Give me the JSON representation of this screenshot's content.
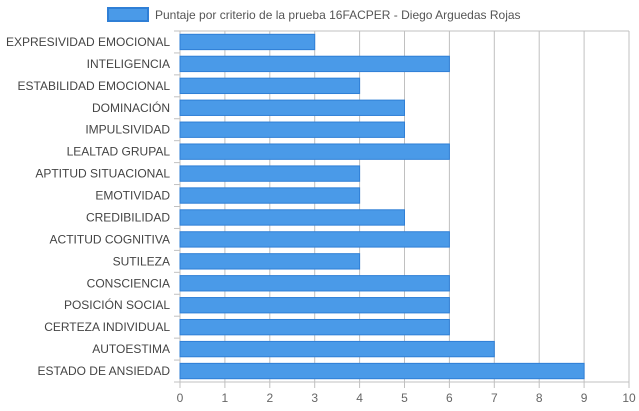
{
  "chart_data": {
    "type": "bar",
    "orientation": "horizontal",
    "title": "",
    "legend": {
      "label": "Puntaje por criterio de la prueba 16FACPER - Diego Arguedas Rojas",
      "placement": "top-center"
    },
    "categories": [
      "EXPRESIVIDAD EMOCIONAL",
      "INTELIGENCIA",
      "ESTABILIDAD EMOCIONAL",
      "DOMINACIÓN",
      "IMPULSIVIDAD",
      "LEALTAD GRUPAL",
      "APTITUD SITUACIONAL",
      "EMOTIVIDAD",
      "CREDIBILIDAD",
      "ACTITUD COGNITIVA",
      "SUTILEZA",
      "CONSCIENCIA",
      "POSICIÓN SOCIAL",
      "CERTEZA INDIVIDUAL",
      "AUTOESTIMA",
      "ESTADO DE ANSIEDAD"
    ],
    "values": [
      3,
      6,
      4,
      5,
      5,
      6,
      4,
      4,
      5,
      6,
      4,
      6,
      6,
      6,
      7,
      9
    ],
    "xlim": [
      0,
      10
    ],
    "xticks": [
      "0",
      "1",
      "2",
      "3",
      "4",
      "5",
      "6",
      "7",
      "8",
      "9",
      "10"
    ],
    "grid": true,
    "colors": {
      "bar_fill": "#4a9ae8",
      "bar_stroke": "#2f7fd6",
      "grid": "#c0c0c0"
    }
  }
}
